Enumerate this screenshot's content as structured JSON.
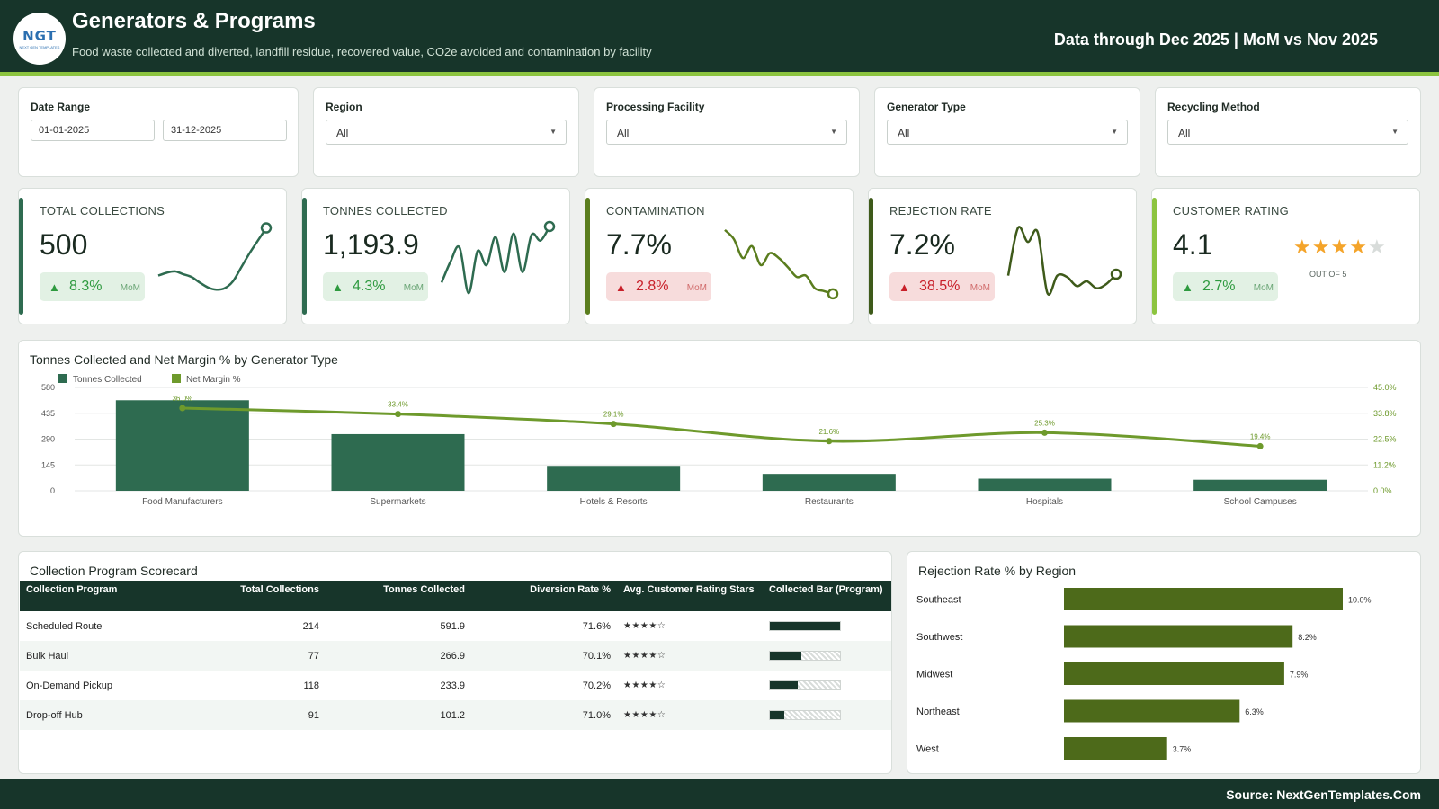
{
  "header": {
    "logo_text": "NGT",
    "logo_sub": "NEXT GEN TEMPLATES",
    "title": "Generators & Programs",
    "subtitle": "Food waste collected and diverted, landfill residue, recovered value, CO2e avoided and contamination by facility",
    "period": "Data through Dec 2025 | MoM vs Nov 2025"
  },
  "filters": {
    "date_range": {
      "label": "Date Range",
      "start": "01-01-2025",
      "end": "31-12-2025"
    },
    "region": {
      "label": "Region",
      "value": "All"
    },
    "facility": {
      "label": "Processing Facility",
      "value": "All"
    },
    "generator_type": {
      "label": "Generator Type",
      "value": "All"
    },
    "recycling_method": {
      "label": "Recycling Method",
      "value": "All"
    }
  },
  "kpis": [
    {
      "label": "TOTAL COLLECTIONS",
      "value": "500",
      "change": "8.3%",
      "mom": "MoM",
      "direction": "up",
      "color": "#2e6b50",
      "trend": [
        0.3,
        0.34,
        0.36,
        0.32,
        0.28,
        0.2,
        0.13,
        0.1,
        0.12,
        0.22,
        0.42,
        0.62,
        0.8,
        0.98
      ]
    },
    {
      "label": "TONNES COLLECTED",
      "value": "1,193.9",
      "change": "4.3%",
      "mom": "MoM",
      "direction": "up",
      "color": "#2e6b50",
      "trend": [
        0.2,
        0.5,
        0.7,
        0.05,
        0.65,
        0.45,
        0.85,
        0.35,
        0.9,
        0.35,
        0.88,
        0.8,
        1.0
      ]
    },
    {
      "label": "CONTAMINATION",
      "value": "7.7%",
      "change": "2.8%",
      "mom": "MoM",
      "direction": "down",
      "color": "#5a7d1e",
      "trend": [
        0.95,
        0.82,
        0.55,
        0.72,
        0.45,
        0.62,
        0.55,
        0.42,
        0.28,
        0.3,
        0.12,
        0.08,
        0.04
      ]
    },
    {
      "label": "REJECTION RATE",
      "value": "7.2%",
      "change": "38.5%",
      "mom": "MoM",
      "direction": "down",
      "color": "#3e5a1a",
      "trend": [
        0.3,
        0.98,
        0.78,
        0.92,
        0.05,
        0.3,
        0.28,
        0.15,
        0.22,
        0.12,
        0.18,
        0.32
      ]
    },
    {
      "label": "CUSTOMER RATING",
      "value": "4.1",
      "change": "2.7%",
      "mom": "MoM",
      "direction": "up",
      "color": "#8cc43f",
      "rating": 4,
      "rating_max": 5,
      "out_of": "OUT OF 5"
    }
  ],
  "chart_data": [
    {
      "type": "bar",
      "title": "Tonnes Collected and Net Margin % by Generator Type",
      "categories": [
        "Food Manufacturers",
        "Supermarkets",
        "Hotels & Resorts",
        "Restaurants",
        "Hospitals",
        "School Campuses"
      ],
      "series": [
        {
          "name": "Tonnes Collected",
          "type": "bar",
          "axis": "left",
          "color": "#2e6b50",
          "values": [
            508,
            318,
            140,
            95,
            68,
            62
          ]
        },
        {
          "name": "Net Margin %",
          "type": "line",
          "axis": "right",
          "color": "#6e9a2c",
          "values": [
            36.0,
            33.4,
            29.1,
            21.6,
            25.3,
            19.4
          ],
          "labels": [
            "36.0%",
            "33.4%",
            "29.1%",
            "21.6%",
            "25.3%",
            "19.4%"
          ]
        }
      ],
      "y_left": {
        "min": 0,
        "max": 580,
        "ticks": [
          "0",
          "145",
          "290",
          "435",
          "580"
        ]
      },
      "y_right": {
        "min": 0,
        "max": 45,
        "ticks": [
          "0.0%",
          "11.2%",
          "22.5%",
          "33.8%",
          "45.0%"
        ]
      },
      "legend": "top-left",
      "grid": true
    },
    {
      "type": "bar",
      "orientation": "horizontal",
      "title": "Rejection Rate % by Region",
      "categories": [
        "Southeast",
        "Southwest",
        "Midwest",
        "Northeast",
        "West"
      ],
      "values": [
        10.0,
        8.2,
        7.9,
        6.3,
        3.7
      ],
      "labels": [
        "10.0%",
        "8.2%",
        "7.9%",
        "6.3%",
        "3.7%"
      ],
      "color": "#4d6a1a",
      "xlim": [
        0,
        10.0
      ]
    }
  ],
  "scorecard": {
    "title": "Collection Program Scorecard",
    "columns": [
      "Collection Program",
      "Total Collections",
      "Tonnes Collected",
      "Diversion Rate %",
      "Avg. Customer Rating Stars",
      "Collected Bar (Program)"
    ],
    "rows": [
      {
        "program": "Scheduled Route",
        "collections": "214",
        "tonnes": "591.9",
        "diversion": "71.6%",
        "stars": "★★★★☆",
        "bar": 1.0
      },
      {
        "program": "Bulk Haul",
        "collections": "77",
        "tonnes": "266.9",
        "diversion": "70.1%",
        "stars": "★★★★☆",
        "bar": 0.45
      },
      {
        "program": "On-Demand Pickup",
        "collections": "118",
        "tonnes": "233.9",
        "diversion": "70.2%",
        "stars": "★★★★☆",
        "bar": 0.4
      },
      {
        "program": "Drop-off Hub",
        "collections": "91",
        "tonnes": "101.2",
        "diversion": "71.0%",
        "stars": "★★★★☆",
        "bar": 0.2
      }
    ]
  },
  "footer": {
    "source": "Source: NextGenTemplates.Com"
  }
}
